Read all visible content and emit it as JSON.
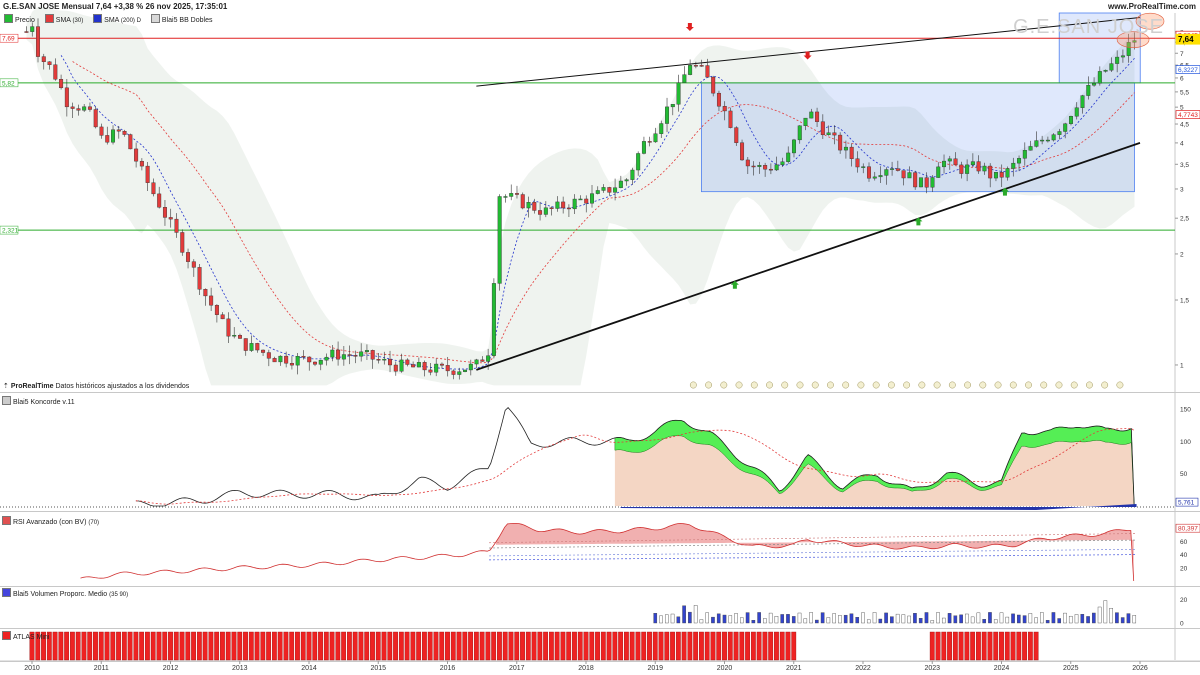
{
  "header": {
    "title": "G.E.SAN JOSE Mensual 7,64 +3,38 % 26 nov 2025, 17:35:01",
    "site": "www.ProRealTime.com",
    "watermark": "G.E.SAN JOSE"
  },
  "legend": {
    "precio": "Precio",
    "sma30": "SMA",
    "sma30_param": "(30)",
    "sma200": "SMA",
    "sma200_param": "(200) D",
    "bb": "Blai5 BB Dobles"
  },
  "note": {
    "brand": "ProRealTime",
    "text": "Datos históricos ajustados a los dividendos"
  },
  "panels": {
    "koncorde": "Blai5 Koncorde v.11",
    "rsi_name": "RSI Avanzado (con BV)",
    "rsi_param": "(70)",
    "volumen_name": "Blai5 Volumen Proporc. Medio",
    "volumen_param": "(35 90)",
    "atlas": "ATLAS Mini"
  },
  "colors": {
    "up": "#22bb33",
    "down": "#e23b3b",
    "resistance": "#e02020",
    "support": "#2aaa2a",
    "box": "#4d7ff0",
    "koncorde_green": "#55ee55",
    "rsi_red": "#e05050",
    "atlas_red": "#ee2222",
    "price_tag": "#ffe000"
  },
  "chart_data": [
    {
      "type": "candlestick",
      "title": "G.E.SAN JOSE Mensual",
      "x_axis": [
        "2010",
        "2011",
        "2012",
        "2013",
        "2014",
        "2015",
        "2016",
        "2017",
        "2018",
        "2019",
        "2020",
        "2021",
        "2022",
        "2023",
        "2024",
        "2025",
        "2026"
      ],
      "y_scale": "log",
      "ylim": [
        0.85,
        9.0
      ],
      "y_ticks": [
        "1",
        "1,5",
        "2",
        "2,5",
        "3",
        "3,5",
        "4",
        "4,5",
        "5",
        "5,5",
        "6",
        "6,5",
        "7",
        "7,5",
        "8"
      ],
      "last_price": "7,64",
      "price_tags": [
        {
          "value": "7,8345",
          "color": "#e02020"
        },
        {
          "value": "7,64",
          "color": "#ffe000"
        },
        {
          "value": "6,3227",
          "color": "#2255dd"
        },
        {
          "value": "4,7743",
          "color": "#e02020"
        }
      ],
      "levels": [
        {
          "value": 7.69,
          "label": "7,69",
          "color": "#e02020"
        },
        {
          "value": 5.82,
          "label": "5,82",
          "color": "#2aaa2a"
        },
        {
          "value": 2.321,
          "label": "2,321",
          "color": "#2aaa2a"
        }
      ],
      "trendlines": [
        {
          "from": [
            "2016-06",
            0.97
          ],
          "to": [
            "2026-01",
            4.0
          ],
          "label": "support"
        },
        {
          "from": [
            "2016-06",
            5.7
          ],
          "to": [
            "2026-01",
            8.75
          ],
          "label": "upper channel"
        }
      ],
      "boxes": [
        {
          "from": "2019-09",
          "to": "2025-11",
          "low": 2.95,
          "high": 5.82
        },
        {
          "from": "2024-11",
          "to": "2025-12",
          "low": 5.82,
          "high": 9.0
        }
      ],
      "monthly_anchors": [
        [
          2009.9,
          7.9
        ],
        [
          2010.0,
          8.5
        ],
        [
          2010.1,
          6.9
        ],
        [
          2010.3,
          6.3
        ],
        [
          2010.5,
          5.2
        ],
        [
          2010.8,
          4.9
        ],
        [
          2011.0,
          4.1
        ],
        [
          2011.3,
          4.3
        ],
        [
          2011.6,
          3.3
        ],
        [
          2011.9,
          2.6
        ],
        [
          2012.2,
          2.05
        ],
        [
          2012.5,
          1.55
        ],
        [
          2012.8,
          1.25
        ],
        [
          2013.0,
          1.15
        ],
        [
          2013.5,
          1.05
        ],
        [
          2014.0,
          1.03
        ],
        [
          2014.4,
          1.07
        ],
        [
          2014.8,
          1.06
        ],
        [
          2015.2,
          1.0
        ],
        [
          2015.6,
          0.98
        ],
        [
          2016.0,
          0.97
        ],
        [
          2016.4,
          0.99
        ],
        [
          2016.6,
          1.1
        ],
        [
          2016.75,
          2.9
        ],
        [
          2017.0,
          2.8
        ],
        [
          2017.4,
          2.6
        ],
        [
          2017.8,
          2.75
        ],
        [
          2018.2,
          2.9
        ],
        [
          2018.6,
          3.2
        ],
        [
          2018.8,
          3.9
        ],
        [
          2019.0,
          4.4
        ],
        [
          2019.3,
          5.4
        ],
        [
          2019.5,
          6.6
        ],
        [
          2019.7,
          6.2
        ],
        [
          2019.9,
          5.3
        ],
        [
          2020.1,
          4.5
        ],
        [
          2020.3,
          3.5
        ],
        [
          2020.6,
          3.4
        ],
        [
          2020.9,
          3.6
        ],
        [
          2021.2,
          4.9
        ],
        [
          2021.5,
          4.2
        ],
        [
          2021.8,
          3.7
        ],
        [
          2022.1,
          3.3
        ],
        [
          2022.4,
          3.5
        ],
        [
          2022.7,
          3.2
        ],
        [
          2022.9,
          3.05
        ],
        [
          2023.1,
          3.6
        ],
        [
          2023.4,
          3.4
        ],
        [
          2023.7,
          3.45
        ],
        [
          2023.9,
          3.2
        ],
        [
          2024.1,
          3.35
        ],
        [
          2024.3,
          3.7
        ],
        [
          2024.6,
          4.1
        ],
        [
          2024.9,
          4.5
        ],
        [
          2025.1,
          5.2
        ],
        [
          2025.3,
          5.7
        ],
        [
          2025.5,
          6.3
        ],
        [
          2025.7,
          6.75
        ],
        [
          2025.9,
          7.64
        ]
      ]
    },
    {
      "type": "area",
      "title": "Blai5 Koncorde v.11",
      "y_ticks": [
        "0",
        "50",
        "100",
        "150"
      ],
      "last_value": "5,761",
      "shaded_from": "2018-06",
      "anchors": [
        [
          2011.5,
          2
        ],
        [
          2012.4,
          8
        ],
        [
          2013.0,
          20
        ],
        [
          2013.8,
          18
        ],
        [
          2014.4,
          18
        ],
        [
          2015.0,
          12
        ],
        [
          2015.6,
          40
        ],
        [
          2016.0,
          30
        ],
        [
          2016.6,
          60
        ],
        [
          2016.85,
          158
        ],
        [
          2017.2,
          95
        ],
        [
          2017.8,
          100
        ],
        [
          2018.6,
          100
        ],
        [
          2019.0,
          115
        ],
        [
          2019.4,
          135
        ],
        [
          2019.8,
          110
        ],
        [
          2020.4,
          60
        ],
        [
          2020.8,
          25
        ],
        [
          2021.2,
          75
        ],
        [
          2021.7,
          30
        ],
        [
          2022.2,
          50
        ],
        [
          2022.7,
          22
        ],
        [
          2023.2,
          50
        ],
        [
          2023.7,
          35
        ],
        [
          2024.0,
          35
        ],
        [
          2024.3,
          118
        ],
        [
          2024.7,
          112
        ],
        [
          2025.1,
          128
        ],
        [
          2025.5,
          115
        ],
        [
          2025.9,
          125
        ]
      ]
    },
    {
      "type": "area",
      "title": "RSI Avanzado (con BV)",
      "y_ticks": [
        "20",
        "40",
        "60"
      ],
      "last_value": "80,397",
      "anchors": [
        [
          2010.7,
          2
        ],
        [
          2011.2,
          10
        ],
        [
          2012.0,
          14
        ],
        [
          2013.0,
          20
        ],
        [
          2014.0,
          24
        ],
        [
          2015.0,
          32
        ],
        [
          2016.0,
          38
        ],
        [
          2016.6,
          44
        ],
        [
          2016.85,
          88
        ],
        [
          2017.3,
          78
        ],
        [
          2017.9,
          74
        ],
        [
          2018.5,
          76
        ],
        [
          2019.0,
          80
        ],
        [
          2019.5,
          86
        ],
        [
          2019.9,
          70
        ],
        [
          2020.4,
          52
        ],
        [
          2021.0,
          54
        ],
        [
          2021.2,
          63
        ],
        [
          2021.8,
          56
        ],
        [
          2022.3,
          52
        ],
        [
          2022.8,
          50
        ],
        [
          2023.3,
          54
        ],
        [
          2023.8,
          52
        ],
        [
          2024.2,
          55
        ],
        [
          2024.6,
          64
        ],
        [
          2025.0,
          68
        ],
        [
          2025.5,
          72
        ],
        [
          2025.9,
          80
        ]
      ]
    },
    {
      "type": "bar",
      "title": "Blai5 Volumen Proporc. Medio",
      "y_ticks": [
        "0",
        "20"
      ],
      "active_from": "2019-01"
    },
    {
      "type": "bar",
      "title": "ATLAS Mini",
      "segments": [
        [
          "2010-01",
          "2021-01"
        ],
        [
          "2023-01",
          "2024-07"
        ]
      ]
    }
  ]
}
